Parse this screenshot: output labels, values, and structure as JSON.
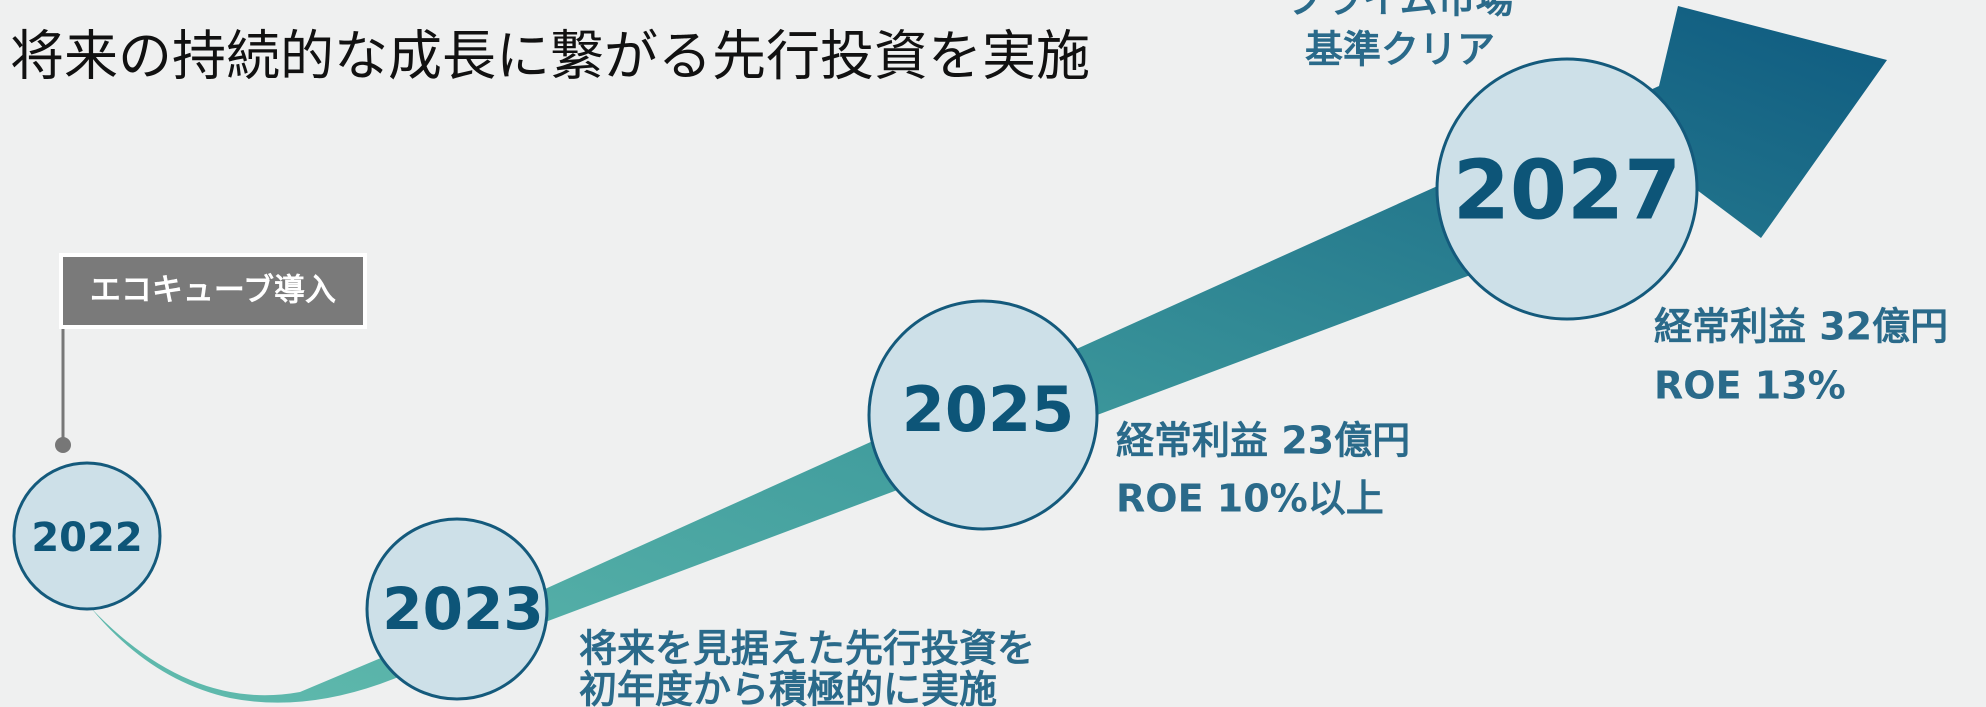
{
  "title": "将来の持続的な成長に繋がる先行投資を実施",
  "callout": "エコキューブ導入",
  "milestones": [
    {
      "year": "2022"
    },
    {
      "year": "2023",
      "notes": [
        "将来を見据えた先行投資を",
        "初年度から積極的に実施"
      ]
    },
    {
      "year": "2025",
      "notes": [
        "経常利益  23億円",
        "ROE 10%以上"
      ]
    },
    {
      "year": "2027",
      "notes": [
        "経常利益 32億円",
        "ROE 13%"
      ],
      "top_notes": [
        "プライム市場",
        "基準クリア"
      ]
    }
  ]
}
